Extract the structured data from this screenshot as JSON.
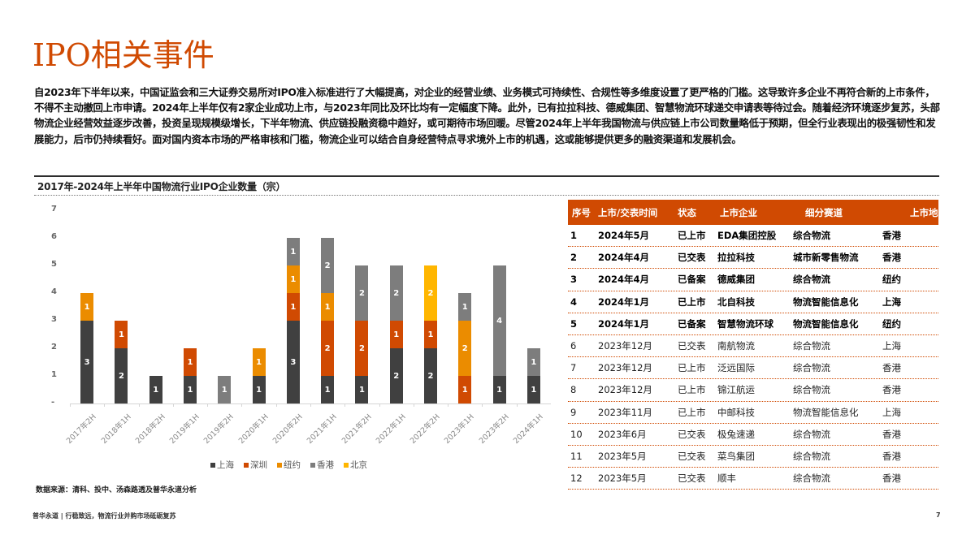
{
  "page": {
    "title": "IPO相关事件",
    "intro": "自2023年下半年以来，中国证监会和三大证券交易所对IPO准入标准进行了大幅提高，对企业的经营业绩、业务模式可持续性、合规性等多维度设置了更严格的门槛。这导致许多企业不再符合新的上市条件，不得不主动撤回上市申请。2024年上半年仅有2家企业成功上市，与2023年同比及环比均有一定幅度下降。此外，已有拉拉科技、德威集团、智慧物流环球递交申请表等待过会。随着经济环境逐步复苏，头部物流企业经营效益逐步改善，投资呈现规模级增长，下半年物流、供应链投融资稳中趋好，或可期待市场回暖。尽管2024年上半年我国物流与供应链上市公司数量略低于预期，但全行业表现出的极强韧性和发展能力，后市仍持续看好。面对国内资本市场的严格审核和门槛，物流企业可以结合自身经营特点寻求境外上市的机遇，这或能够提供更多的融资渠道和发展机会。",
    "source": "数据来源：清科、投中、汤森路透及普华永道分析",
    "footer": "普华永道 | 行稳致远，物流行业并购市场砥砺复苏",
    "page_number": "7"
  },
  "chart_data": {
    "type": "bar",
    "stacked": true,
    "title": "2017年-2024年上半年中国物流行业IPO企业数量（宗）",
    "xlabel": "",
    "ylabel": "",
    "ylim": [
      0,
      7
    ],
    "yticks": [
      "-",
      "1",
      "2",
      "3",
      "4",
      "5",
      "6",
      "7"
    ],
    "grid": false,
    "legend_position": "bottom",
    "categories": [
      "2017年2H",
      "2018年1H",
      "2018年2H",
      "2019年1H",
      "2019年2H",
      "2020年1H",
      "2020年2H",
      "2021年1H",
      "2021年2H",
      "2022年1H",
      "2022年2H",
      "2023年1H",
      "2023年2H",
      "2024年1H"
    ],
    "series": [
      {
        "name": "上海",
        "color": "#404040",
        "values": [
          3,
          2,
          1,
          1,
          0,
          1,
          3,
          1,
          1,
          2,
          2,
          0,
          1,
          1
        ]
      },
      {
        "name": "深圳",
        "color": "#D04A02",
        "values": [
          0,
          1,
          0,
          1,
          0,
          0,
          1,
          2,
          2,
          1,
          1,
          1,
          0,
          0
        ]
      },
      {
        "name": "纽约",
        "color": "#EB8C00",
        "values": [
          1,
          0,
          0,
          0,
          0,
          1,
          1,
          1,
          0,
          0,
          0,
          2,
          0,
          0
        ]
      },
      {
        "name": "香港",
        "color": "#7D7D7D",
        "values": [
          0,
          0,
          0,
          0,
          1,
          0,
          1,
          2,
          2,
          2,
          0,
          1,
          4,
          1
        ]
      },
      {
        "name": "北京",
        "color": "#FFB600",
        "values": [
          0,
          0,
          0,
          0,
          0,
          0,
          0,
          0,
          0,
          0,
          2,
          0,
          0,
          0
        ]
      }
    ],
    "totals": [
      4,
      3,
      1,
      2,
      1,
      2,
      6,
      6,
      5,
      5,
      5,
      4,
      5,
      2
    ]
  },
  "table": {
    "header_color": "#D04A02",
    "columns": [
      "序号",
      "上市/交表时间",
      "状态",
      "上市企业",
      "细分赛道",
      "上市地"
    ],
    "rows": [
      {
        "no": "1",
        "date": "2024年5月",
        "status": "已上市",
        "company": "EDA集团控股",
        "segment": "综合物流",
        "venue": "香港",
        "highlight": true
      },
      {
        "no": "2",
        "date": "2024年4月",
        "status": "已交表",
        "company": "拉拉科技",
        "segment": "城市新零售物流",
        "venue": "香港",
        "highlight": true
      },
      {
        "no": "3",
        "date": "2024年4月",
        "status": "已备案",
        "company": "德威集团",
        "segment": "综合物流",
        "venue": "纽约",
        "highlight": true
      },
      {
        "no": "4",
        "date": "2024年1月",
        "status": "已上市",
        "company": "北自科技",
        "segment": "物流智能信息化",
        "venue": "上海",
        "highlight": true
      },
      {
        "no": "5",
        "date": "2024年1月",
        "status": "已备案",
        "company": "智慧物流环球",
        "segment": "物流智能信息化",
        "venue": "纽约",
        "highlight": true
      },
      {
        "no": "6",
        "date": "2023年12月",
        "status": "已交表",
        "company": "南航物流",
        "segment": "综合物流",
        "venue": "上海",
        "highlight": false
      },
      {
        "no": "7",
        "date": "2023年12月",
        "status": "已上市",
        "company": "泛远国际",
        "segment": "综合物流",
        "venue": "香港",
        "highlight": false
      },
      {
        "no": "8",
        "date": "2023年12月",
        "status": "已上市",
        "company": "锦江航运",
        "segment": "综合物流",
        "venue": "香港",
        "highlight": false
      },
      {
        "no": "9",
        "date": "2023年11月",
        "status": "已上市",
        "company": "中邮科技",
        "segment": "物流智能信息化",
        "venue": "上海",
        "highlight": false
      },
      {
        "no": "10",
        "date": "2023年6月",
        "status": "已交表",
        "company": "极兔速递",
        "segment": "综合物流",
        "venue": "香港",
        "highlight": false
      },
      {
        "no": "11",
        "date": "2023年5月",
        "status": "已交表",
        "company": "菜鸟集团",
        "segment": "综合物流",
        "venue": "香港",
        "highlight": false
      },
      {
        "no": "12",
        "date": "2023年5月",
        "status": "已交表",
        "company": "顺丰",
        "segment": "综合物流",
        "venue": "香港",
        "highlight": false
      }
    ]
  }
}
